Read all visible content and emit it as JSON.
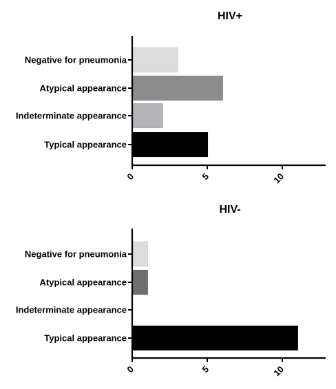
{
  "chart_data": [
    {
      "type": "bar",
      "orientation": "horizontal",
      "title": "HIV+",
      "categories": [
        "Negative for pneumonia",
        "Atypical appearance",
        "Indeterminate appearance",
        "Typical appearance"
      ],
      "values": [
        3,
        6,
        2,
        5
      ],
      "colors": [
        "#dcdcdc",
        "#8c8c8c",
        "#b4b4b8",
        "#000000"
      ],
      "xlim": [
        0,
        13
      ],
      "xticks": [
        0,
        5,
        10
      ],
      "grid": false
    },
    {
      "type": "bar",
      "orientation": "horizontal",
      "title": "HIV-",
      "categories": [
        "Negative for pneumonia",
        "Atypical appearance",
        "Indeterminate appearance",
        "Typical appearance"
      ],
      "values": [
        1,
        1,
        0,
        11
      ],
      "colors": [
        "#dcdcdc",
        "#6e6e6e",
        "#b4b4b8",
        "#000000"
      ],
      "xlim": [
        0,
        13
      ],
      "xticks": [
        0,
        5,
        10
      ],
      "grid": false
    }
  ]
}
